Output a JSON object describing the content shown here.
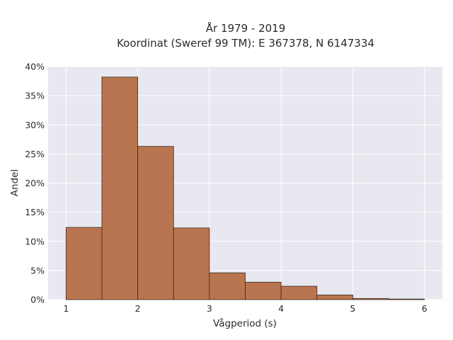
{
  "chart_data": {
    "type": "bar",
    "title_lines": [
      "År 1979 - 2019",
      "Koordinat (Sweref 99 TM): E 367378, N 6147334"
    ],
    "xlabel": "Vågperiod (s)",
    "ylabel": "Andel",
    "bin_edges": [
      1.0,
      1.5,
      2.0,
      2.5,
      3.0,
      3.5,
      4.0,
      4.5,
      5.0,
      5.5,
      6.0
    ],
    "values": [
      12.4,
      38.2,
      26.3,
      12.3,
      4.6,
      3.0,
      2.3,
      0.8,
      0.2,
      0.1
    ],
    "xlim": [
      0.75,
      6.25
    ],
    "ylim": [
      0,
      40
    ],
    "x_ticks": [
      1,
      2,
      3,
      4,
      5,
      6
    ],
    "x_tick_labels": [
      "1",
      "2",
      "3",
      "4",
      "5",
      "6"
    ],
    "y_ticks": [
      0,
      5,
      10,
      15,
      20,
      25,
      30,
      35,
      40
    ],
    "y_tick_labels": [
      "0%",
      "5%",
      "10%",
      "15%",
      "20%",
      "25%",
      "30%",
      "35%",
      "40%"
    ],
    "grid": true,
    "colors": {
      "bar_fill": "#b97550",
      "bar_edge": "#3a2a20",
      "plot_bg": "#e8e8f0",
      "grid": "#ffffff"
    }
  }
}
